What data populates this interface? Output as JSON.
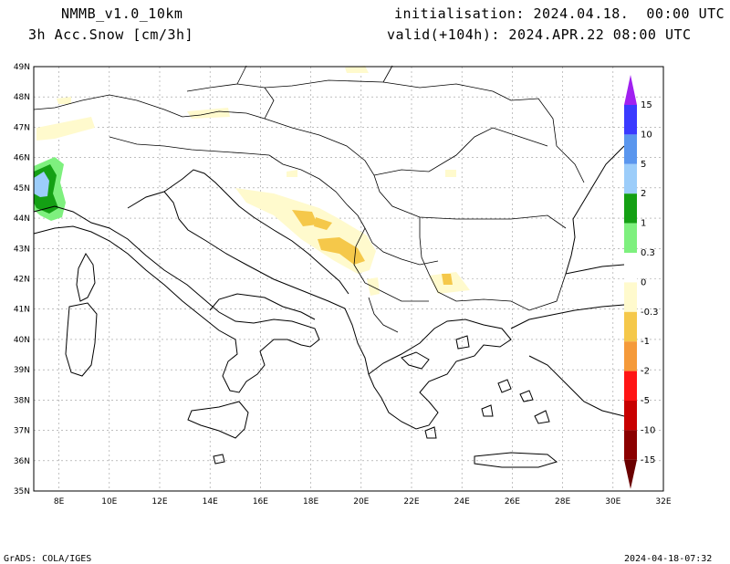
{
  "header": {
    "model": "NMMB_v1.0_10km",
    "variable": "3h Acc.Snow [cm/3h]",
    "init": "initialisation: 2024.04.18.  00:00 UTC",
    "valid": "valid(+104h): 2024.APR.22 08:00 UTC"
  },
  "map": {
    "lat_labels": [
      "49N",
      "48N",
      "47N",
      "46N",
      "45N",
      "44N",
      "43N",
      "42N",
      "41N",
      "40N",
      "39N",
      "38N",
      "37N",
      "36N",
      "35N"
    ],
    "lon_labels": [
      "8E",
      "10E",
      "12E",
      "14E",
      "16E",
      "18E",
      "20E",
      "22E",
      "24E",
      "26E",
      "28E",
      "30E",
      "32E"
    ],
    "lon_range": [
      7,
      32
    ],
    "lat_range": [
      35,
      49
    ]
  },
  "legend": {
    "levels": [
      "15",
      "10",
      "5",
      "2",
      "1",
      "0.3",
      "0",
      "-0.3",
      "-1",
      "-2",
      "-5",
      "-10",
      "-15"
    ],
    "colors": [
      "#a020f0",
      "#3a3aff",
      "#5a96ee",
      "#9ccdfa",
      "#14a014",
      "#7ef07e",
      "#ffffff",
      "#fffacd",
      "#f5c84a",
      "#f59a3a",
      "#ff1414",
      "#c80000",
      "#8b0000",
      "#6a0000"
    ]
  },
  "footer": {
    "left": "GrADS: COLA/IGES",
    "right": "2024-04-18-07:32"
  }
}
